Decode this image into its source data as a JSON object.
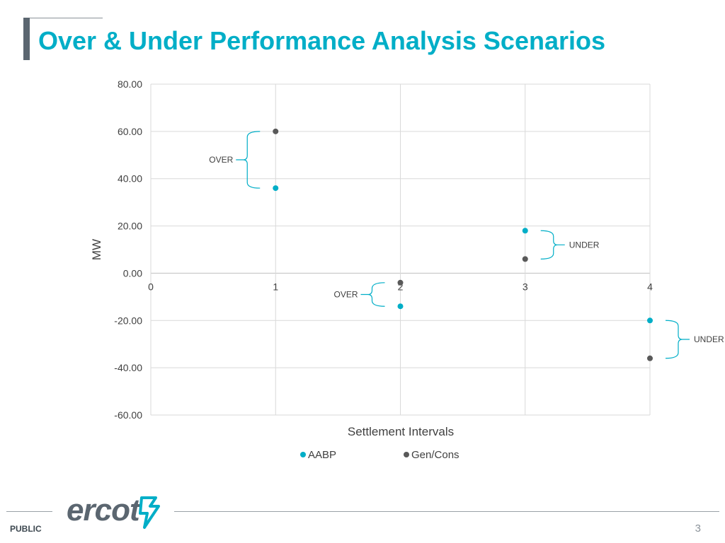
{
  "page": {
    "title": "Over & Under Performance Analysis Scenarios",
    "footer_label": "PUBLIC",
    "page_number": "3",
    "logo_text": "ercot"
  },
  "colors": {
    "aabp": "#00aec7",
    "gen_cons": "#595959",
    "grid": "#d9d9d9",
    "accent": "#00aec7",
    "logo": "#5b6670"
  },
  "chart_data": {
    "type": "scatter",
    "xlabel": "Settlement Intervals",
    "ylabel": "MW",
    "xlim": [
      0,
      4
    ],
    "ylim": [
      -60,
      80
    ],
    "x_ticks": [
      0,
      1,
      2,
      3,
      4
    ],
    "y_ticks": [
      80,
      60,
      40,
      20,
      0,
      -20,
      -40,
      -60
    ],
    "y_tick_labels": [
      "80.00",
      "60.00",
      "40.00",
      "20.00",
      "0.00",
      "-20.00",
      "-40.00",
      "-60.00"
    ],
    "grid": true,
    "legend": "bottom",
    "series": [
      {
        "name": "AABP",
        "x": [
          1,
          2,
          3,
          4
        ],
        "y": [
          36,
          -14,
          18,
          -20
        ]
      },
      {
        "name": "Gen/Cons",
        "x": [
          1,
          2,
          3,
          4
        ],
        "y": [
          60,
          -4,
          6,
          -36
        ]
      }
    ],
    "annotations": [
      {
        "text": "OVER",
        "x": 1,
        "from": 36,
        "to": 60,
        "side": "left"
      },
      {
        "text": "OVER",
        "x": 2,
        "from": -14,
        "to": -4,
        "side": "left"
      },
      {
        "text": "UNDER",
        "x": 3,
        "from": 6,
        "to": 18,
        "side": "right"
      },
      {
        "text": "UNDER",
        "x": 4,
        "from": -36,
        "to": -20,
        "side": "right"
      }
    ]
  }
}
